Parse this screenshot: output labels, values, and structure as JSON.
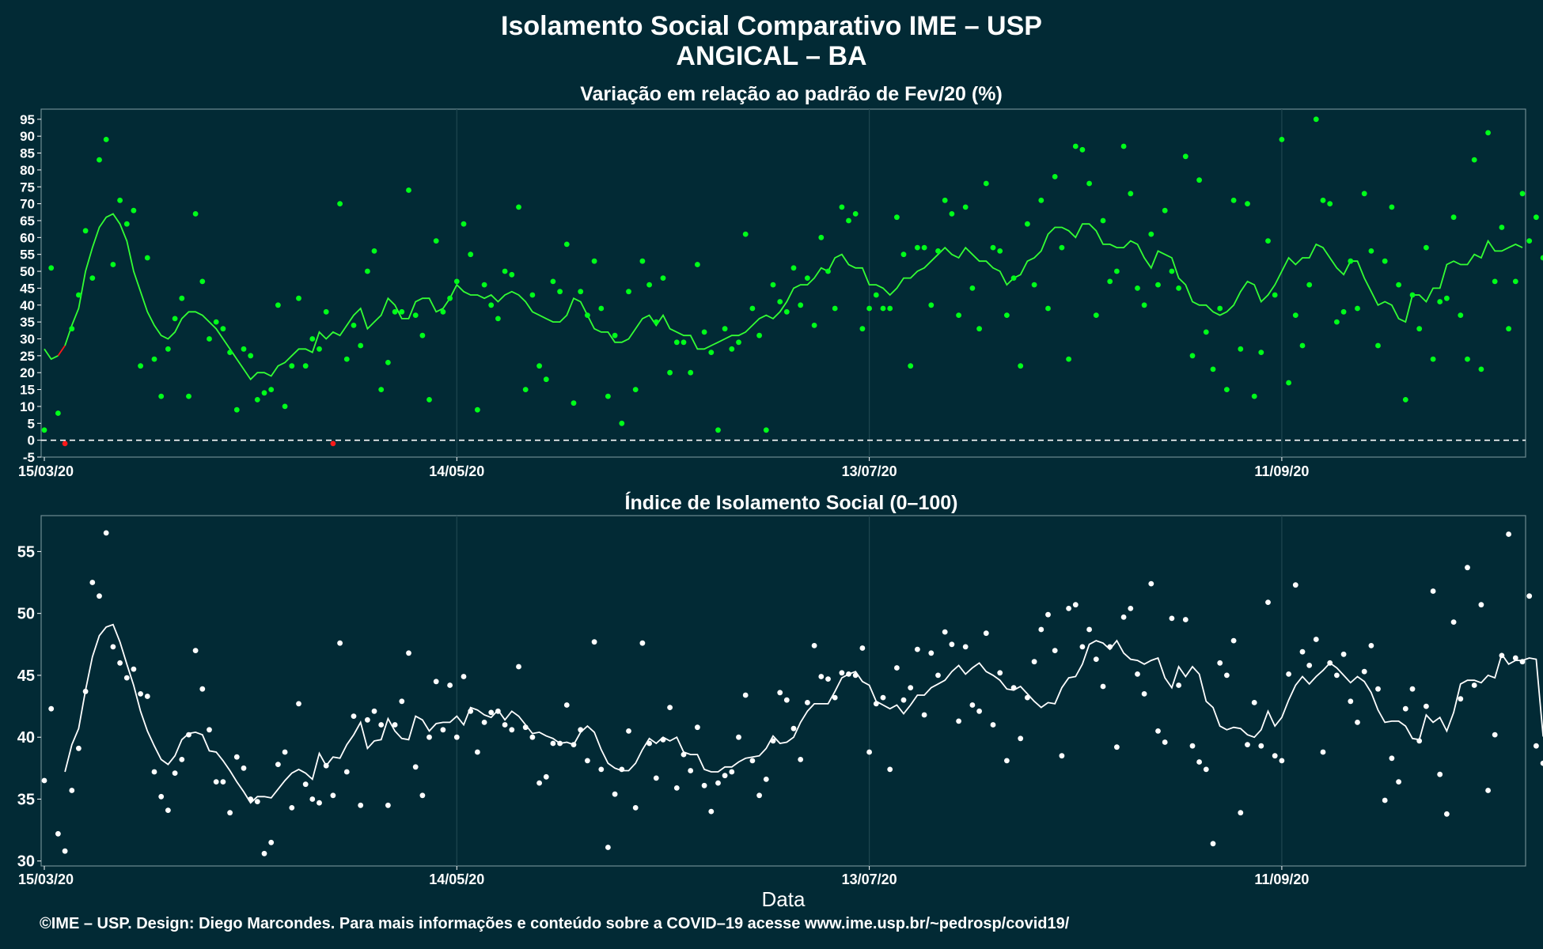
{
  "header": {
    "title": "Isolamento Social Comparativo IME – USP",
    "subtitle": "ANGICAL – BA"
  },
  "footer": "©IME – USP. Design: Diego Marcondes. Para mais informações e conteúdo sobre a COVID–19 acesse www.ime.usp.br/~pedrosp/covid19/",
  "colors": {
    "background": "#022a35",
    "top_points": "#00ff1a",
    "top_line": "#33ff33",
    "negative": "#ff1a1a",
    "bottom": "#ffffff"
  },
  "chart_data": [
    {
      "type": "scatter",
      "title": "Variação em relação ao padrão de Fev/20 (%)",
      "xlabel": "",
      "ylabel": "",
      "x_ticks": [
        "15/03/20",
        "14/05/20",
        "13/07/20",
        "11/09/20"
      ],
      "y_ticks": [
        -5,
        0,
        5,
        10,
        15,
        20,
        25,
        30,
        35,
        40,
        45,
        50,
        55,
        60,
        65,
        70,
        75,
        80,
        85,
        90,
        95
      ],
      "ylim": [
        -5,
        98
      ],
      "reference_line": 0,
      "grid": true,
      "x_start": "15/03/20",
      "series": [
        {
          "kind": "daily_points",
          "values": [
            3,
            51,
            8,
            -1,
            33,
            43,
            62,
            48,
            83,
            89,
            52,
            71,
            64,
            68,
            22,
            54,
            24,
            13,
            27,
            36,
            42,
            13,
            67,
            47,
            30,
            35,
            33,
            26,
            9,
            27,
            25,
            12,
            14,
            15,
            40,
            10,
            22,
            42,
            22,
            30,
            27,
            38,
            -1,
            70,
            24,
            34,
            28,
            50,
            56,
            15,
            23,
            38,
            38,
            74,
            37,
            31,
            12,
            59,
            38,
            42,
            47,
            64,
            55,
            9,
            46,
            40,
            36,
            50,
            49,
            69,
            15,
            43,
            22,
            18,
            47,
            44,
            58,
            11,
            44,
            37,
            53,
            39,
            13,
            31,
            5,
            44,
            15,
            53,
            46,
            35,
            48,
            20,
            29,
            29,
            20,
            52,
            32,
            26,
            3,
            33,
            27,
            29,
            61,
            39,
            31,
            3,
            46,
            41,
            38,
            51,
            40,
            48,
            34,
            60,
            50,
            39,
            69,
            65,
            67,
            33,
            39,
            43,
            39,
            39,
            66,
            55,
            22,
            57,
            57,
            40,
            56,
            71,
            67,
            37,
            69,
            45,
            33,
            76,
            57,
            56,
            37,
            48,
            22,
            64,
            46,
            71,
            39,
            78,
            57,
            24,
            87,
            86,
            76,
            37,
            65,
            47,
            50,
            87,
            73,
            45,
            40,
            61,
            46,
            68,
            50,
            45,
            84,
            25,
            77,
            32,
            21,
            39,
            15,
            71,
            27,
            70,
            13,
            26,
            59,
            43,
            89,
            17,
            37,
            28,
            46,
            95,
            71,
            70,
            35,
            38,
            53,
            39,
            73,
            56,
            28,
            53,
            69,
            46,
            12,
            43,
            33,
            57,
            24,
            41,
            42,
            66,
            37,
            24,
            83,
            21,
            91,
            47,
            63,
            33,
            47,
            73,
            59,
            66,
            54,
            65,
            46,
            39
          ]
        },
        {
          "kind": "moving_average",
          "start_index": 0,
          "values": [
            27,
            24,
            25,
            28,
            34,
            39,
            50,
            57,
            63,
            66,
            67,
            64,
            59,
            50,
            44,
            38,
            34,
            31,
            30,
            32,
            36,
            38,
            38,
            37,
            35,
            33,
            30,
            27,
            24,
            21,
            18,
            20,
            20,
            19,
            22,
            23,
            25,
            27,
            27,
            26,
            32,
            30,
            32,
            31,
            34,
            37,
            39,
            33,
            35,
            37,
            42,
            40,
            36,
            36,
            41,
            42,
            42,
            38,
            39,
            42,
            46,
            44,
            43,
            43,
            42,
            43,
            41,
            43,
            44,
            43,
            41,
            38,
            37,
            36,
            35,
            35,
            37,
            42,
            41,
            37,
            33,
            32,
            32,
            29,
            29,
            30,
            33,
            36,
            37,
            34,
            37,
            33,
            32,
            31,
            31,
            27,
            27,
            28,
            29,
            30,
            31,
            31,
            32,
            34,
            36,
            37,
            36,
            38,
            41,
            45,
            46,
            46,
            48,
            51,
            50,
            54,
            55,
            52,
            51,
            51,
            46,
            46,
            45,
            43,
            45,
            48,
            48,
            50,
            51,
            53,
            55,
            57,
            55,
            54,
            57,
            55,
            53,
            53,
            51,
            50,
            46,
            48,
            49,
            53,
            54,
            56,
            61,
            63,
            63,
            62,
            60,
            64,
            64,
            62,
            58,
            58,
            57,
            57,
            59,
            58,
            54,
            51,
            56,
            55,
            54,
            48,
            46,
            41,
            40,
            40,
            38,
            37,
            38,
            40,
            44,
            47,
            46,
            41,
            43,
            46,
            50,
            54,
            52,
            54,
            54,
            58,
            57,
            54,
            51,
            49,
            53,
            53,
            48,
            44,
            40,
            41,
            40,
            36,
            35,
            43,
            43,
            41,
            45,
            45,
            52,
            53,
            52,
            52,
            55,
            54,
            59,
            56,
            56,
            57,
            58,
            57
          ]
        }
      ]
    },
    {
      "type": "scatter",
      "title": "Índice de Isolamento Social (0–100)",
      "xlabel": "Data",
      "ylabel": "",
      "x_ticks": [
        "15/03/20",
        "14/05/20",
        "13/07/20",
        "11/09/20"
      ],
      "y_ticks": [
        30,
        35,
        40,
        45,
        50,
        55
      ],
      "ylim": [
        29.6,
        57.9
      ],
      "grid": true,
      "x_start": "15/03/20",
      "series": [
        {
          "kind": "daily_points",
          "values": [
            36.5,
            42.3,
            32.2,
            30.8,
            35.7,
            39.1,
            43.7,
            52.5,
            51.4,
            56.5,
            47.3,
            46.0,
            44.8,
            45.5,
            43.5,
            43.3,
            37.2,
            35.2,
            34.1,
            37.1,
            38.2,
            40.2,
            47.0,
            43.9,
            40.6,
            36.4,
            36.4,
            33.9,
            38.4,
            37.5,
            35.0,
            34.8,
            30.6,
            31.5,
            37.8,
            38.8,
            34.3,
            42.7,
            36.2,
            35.0,
            34.7,
            37.7,
            35.3,
            47.6,
            37.2,
            41.7,
            34.5,
            41.4,
            42.1,
            41.0,
            34.5,
            41.0,
            42.9,
            46.8,
            37.6,
            35.3,
            40.0,
            44.5,
            40.6,
            44.2,
            40.0,
            44.9,
            42.1,
            38.8,
            41.2,
            42.0,
            42.1,
            41.0,
            40.6,
            45.7,
            40.8,
            40.0,
            36.3,
            36.8,
            39.5,
            39.5,
            42.6,
            39.4,
            40.6,
            38.1,
            47.7,
            37.4,
            31.1,
            35.4,
            37.4,
            40.5,
            34.3,
            47.6,
            39.5,
            36.7,
            39.8,
            42.4,
            35.9,
            38.6,
            37.3,
            40.8,
            36.1,
            34.0,
            36.3,
            36.9,
            37.2,
            40.0,
            43.4,
            38.1,
            35.3,
            36.6,
            39.7,
            43.6,
            43.0,
            40.7,
            38.2,
            42.8,
            47.4,
            44.9,
            44.7,
            43.2,
            45.2,
            45.1,
            45.0,
            47.2,
            38.8,
            42.7,
            43.2,
            37.4,
            45.6,
            43.0,
            44.0,
            47.1,
            41.8,
            46.8,
            45.0,
            48.5,
            47.5,
            41.3,
            47.3,
            42.6,
            42.1,
            48.4,
            41.0,
            45.2,
            38.1,
            44.0,
            39.9,
            43.2,
            46.1,
            48.7,
            49.9,
            47.0,
            38.5,
            50.4,
            50.7,
            47.3,
            48.7,
            46.3,
            44.1,
            47.3,
            39.2,
            49.7,
            50.4,
            45.1,
            43.5,
            52.4,
            40.5,
            39.6,
            49.6,
            44.2,
            49.5,
            39.3,
            38.0,
            37.4,
            31.4,
            46.0,
            45.0,
            47.8,
            33.9,
            39.4,
            42.8,
            39.3,
            50.9,
            38.5,
            38.1,
            45.1,
            52.3,
            46.9,
            45.8,
            47.9,
            38.8,
            46.0,
            45.0,
            46.7,
            42.9,
            41.2,
            45.3,
            47.4,
            43.9,
            34.9,
            38.3,
            36.4,
            42.3,
            43.9,
            39.7,
            42.5,
            51.8,
            37.0,
            33.8,
            49.3,
            43.1,
            53.7,
            44.2,
            50.7,
            35.7,
            40.2,
            46.6,
            56.4,
            46.4,
            46.1,
            51.4,
            39.3,
            37.9
          ]
        },
        {
          "kind": "moving_average",
          "start_index": 3,
          "values": [
            37.2,
            39.4,
            40.7,
            43.8,
            46.5,
            48.2,
            48.9,
            49.1,
            47.7,
            45.9,
            44.2,
            42.1,
            40.5,
            39.3,
            38.2,
            37.8,
            38.5,
            39.8,
            40.3,
            40.4,
            40.2,
            38.9,
            38.8,
            38.1,
            37.3,
            36.4,
            35.6,
            34.7,
            35.2,
            35.2,
            35.1,
            35.8,
            36.5,
            37.1,
            37.4,
            37.1,
            36.6,
            38.7,
            37.7,
            38.4,
            38.3,
            39.4,
            40.2,
            41.2,
            39.1,
            39.7,
            39.8,
            41.5,
            40.5,
            39.9,
            39.8,
            41.7,
            41.4,
            40.5,
            41.1,
            41.2,
            41.2,
            41.7,
            41.0,
            42.4,
            42.2,
            41.8,
            41.6,
            42.2,
            41.4,
            42.1,
            41.7,
            41.0,
            40.3,
            40.4,
            40.1,
            39.9,
            39.5,
            39.6,
            39.4,
            40.4,
            40.9,
            40.4,
            39.0,
            37.9,
            37.5,
            37.3,
            37.3,
            37.9,
            39.0,
            39.9,
            39.5,
            40.0,
            39.7,
            40.0,
            38.8,
            38.6,
            38.6,
            37.4,
            37.2,
            37.2,
            37.6,
            37.6,
            38.0,
            38.3,
            38.4,
            38.5,
            39.1,
            40.1,
            39.5,
            39.6,
            40.0,
            41.2,
            42.1,
            42.7,
            42.7,
            42.7,
            43.7,
            44.8,
            45.1,
            45.3,
            44.5,
            44.2,
            42.9,
            42.6,
            42.3,
            42.6,
            41.9,
            42.6,
            43.4,
            43.4,
            44.0,
            44.3,
            44.6,
            45.3,
            45.8,
            45.1,
            45.6,
            46.0,
            45.3,
            45.0,
            44.6,
            43.9,
            43.8,
            44.1,
            43.5,
            42.9,
            42.4,
            42.8,
            42.7,
            44.0,
            44.8,
            44.9,
            45.9,
            47.5,
            47.8,
            47.6,
            47.1,
            47.8,
            46.8,
            46.3,
            46.2,
            45.9,
            46.2,
            46.4,
            44.8,
            44.0,
            45.7,
            44.9,
            45.7,
            45.1,
            42.9,
            42.4,
            40.9,
            40.6,
            40.8,
            40.7,
            40.2,
            40.0,
            40.6,
            42.1,
            40.9,
            41.6,
            43.0,
            44.2,
            44.9,
            44.3,
            44.9,
            45.4,
            46.0,
            45.6,
            45.0,
            44.4,
            44.9,
            44.5,
            43.6,
            42.2,
            41.2,
            41.3,
            41.3,
            40.9,
            39.9,
            39.8,
            41.8,
            41.2,
            41.6,
            40.5,
            42.0,
            44.3,
            44.6,
            44.6,
            44.4,
            45.0,
            44.8,
            46.7,
            45.9,
            46.2,
            46.2,
            46.4,
            46.3,
            40.1,
            39.5,
            33.7
          ]
        }
      ]
    }
  ]
}
